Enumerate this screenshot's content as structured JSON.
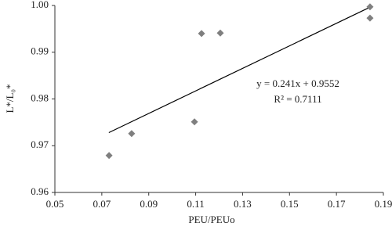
{
  "chart_data": {
    "type": "scatter",
    "x_label": "PEU/PEUo",
    "y_label": "L*/L₀*",
    "series": [
      {
        "name": "points",
        "color": "#7f7f7f",
        "x": [
          0.0731,
          0.0827,
          0.1095,
          0.1125,
          0.1205,
          0.1843,
          0.1843
        ],
        "values": [
          0.9679,
          0.9726,
          0.9751,
          0.994,
          0.9941,
          0.9997,
          0.9973
        ]
      }
    ],
    "trendline": {
      "color": "#000000",
      "x": [
        0.073,
        0.185
      ],
      "values": [
        0.9728,
        0.9998
      ]
    },
    "annotations": [
      "y = 0.241x + 0.9552",
      "R² = 0.7111"
    ],
    "xlim": [
      0.05,
      0.19
    ],
    "xticks": [
      0.05,
      0.07,
      0.09,
      0.11,
      0.13,
      0.15,
      0.17,
      0.19
    ],
    "ylim": [
      0.96,
      1.0
    ],
    "yticks": [
      0.96,
      0.97,
      0.98,
      0.99,
      {
        "value": 1.0,
        "label": "1.00"
      }
    ],
    "grid": false
  }
}
